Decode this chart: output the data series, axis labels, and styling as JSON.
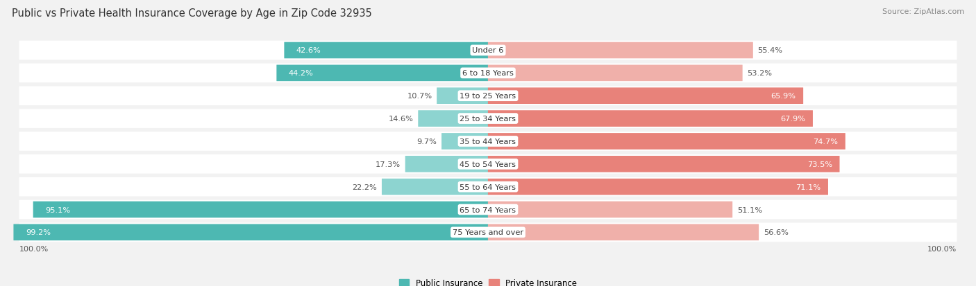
{
  "title": "Public vs Private Health Insurance Coverage by Age in Zip Code 32935",
  "source": "Source: ZipAtlas.com",
  "categories": [
    "Under 6",
    "6 to 18 Years",
    "19 to 25 Years",
    "25 to 34 Years",
    "35 to 44 Years",
    "45 to 54 Years",
    "55 to 64 Years",
    "65 to 74 Years",
    "75 Years and over"
  ],
  "public_values": [
    42.6,
    44.2,
    10.7,
    14.6,
    9.7,
    17.3,
    22.2,
    95.1,
    99.2
  ],
  "private_values": [
    55.4,
    53.2,
    65.9,
    67.9,
    74.7,
    73.5,
    71.1,
    51.1,
    56.6
  ],
  "public_color": "#4db8b2",
  "private_color": "#e8827a",
  "public_color_light": "#8dd4d0",
  "private_color_light": "#f0b0aa",
  "bg_color": "#f2f2f2",
  "row_bg_color": "#ffffff",
  "row_alt_color": "#f7f7f7",
  "title_fontsize": 10.5,
  "label_fontsize": 8.2,
  "source_fontsize": 8,
  "legend_fontsize": 8.5,
  "axis_label_fontsize": 8
}
